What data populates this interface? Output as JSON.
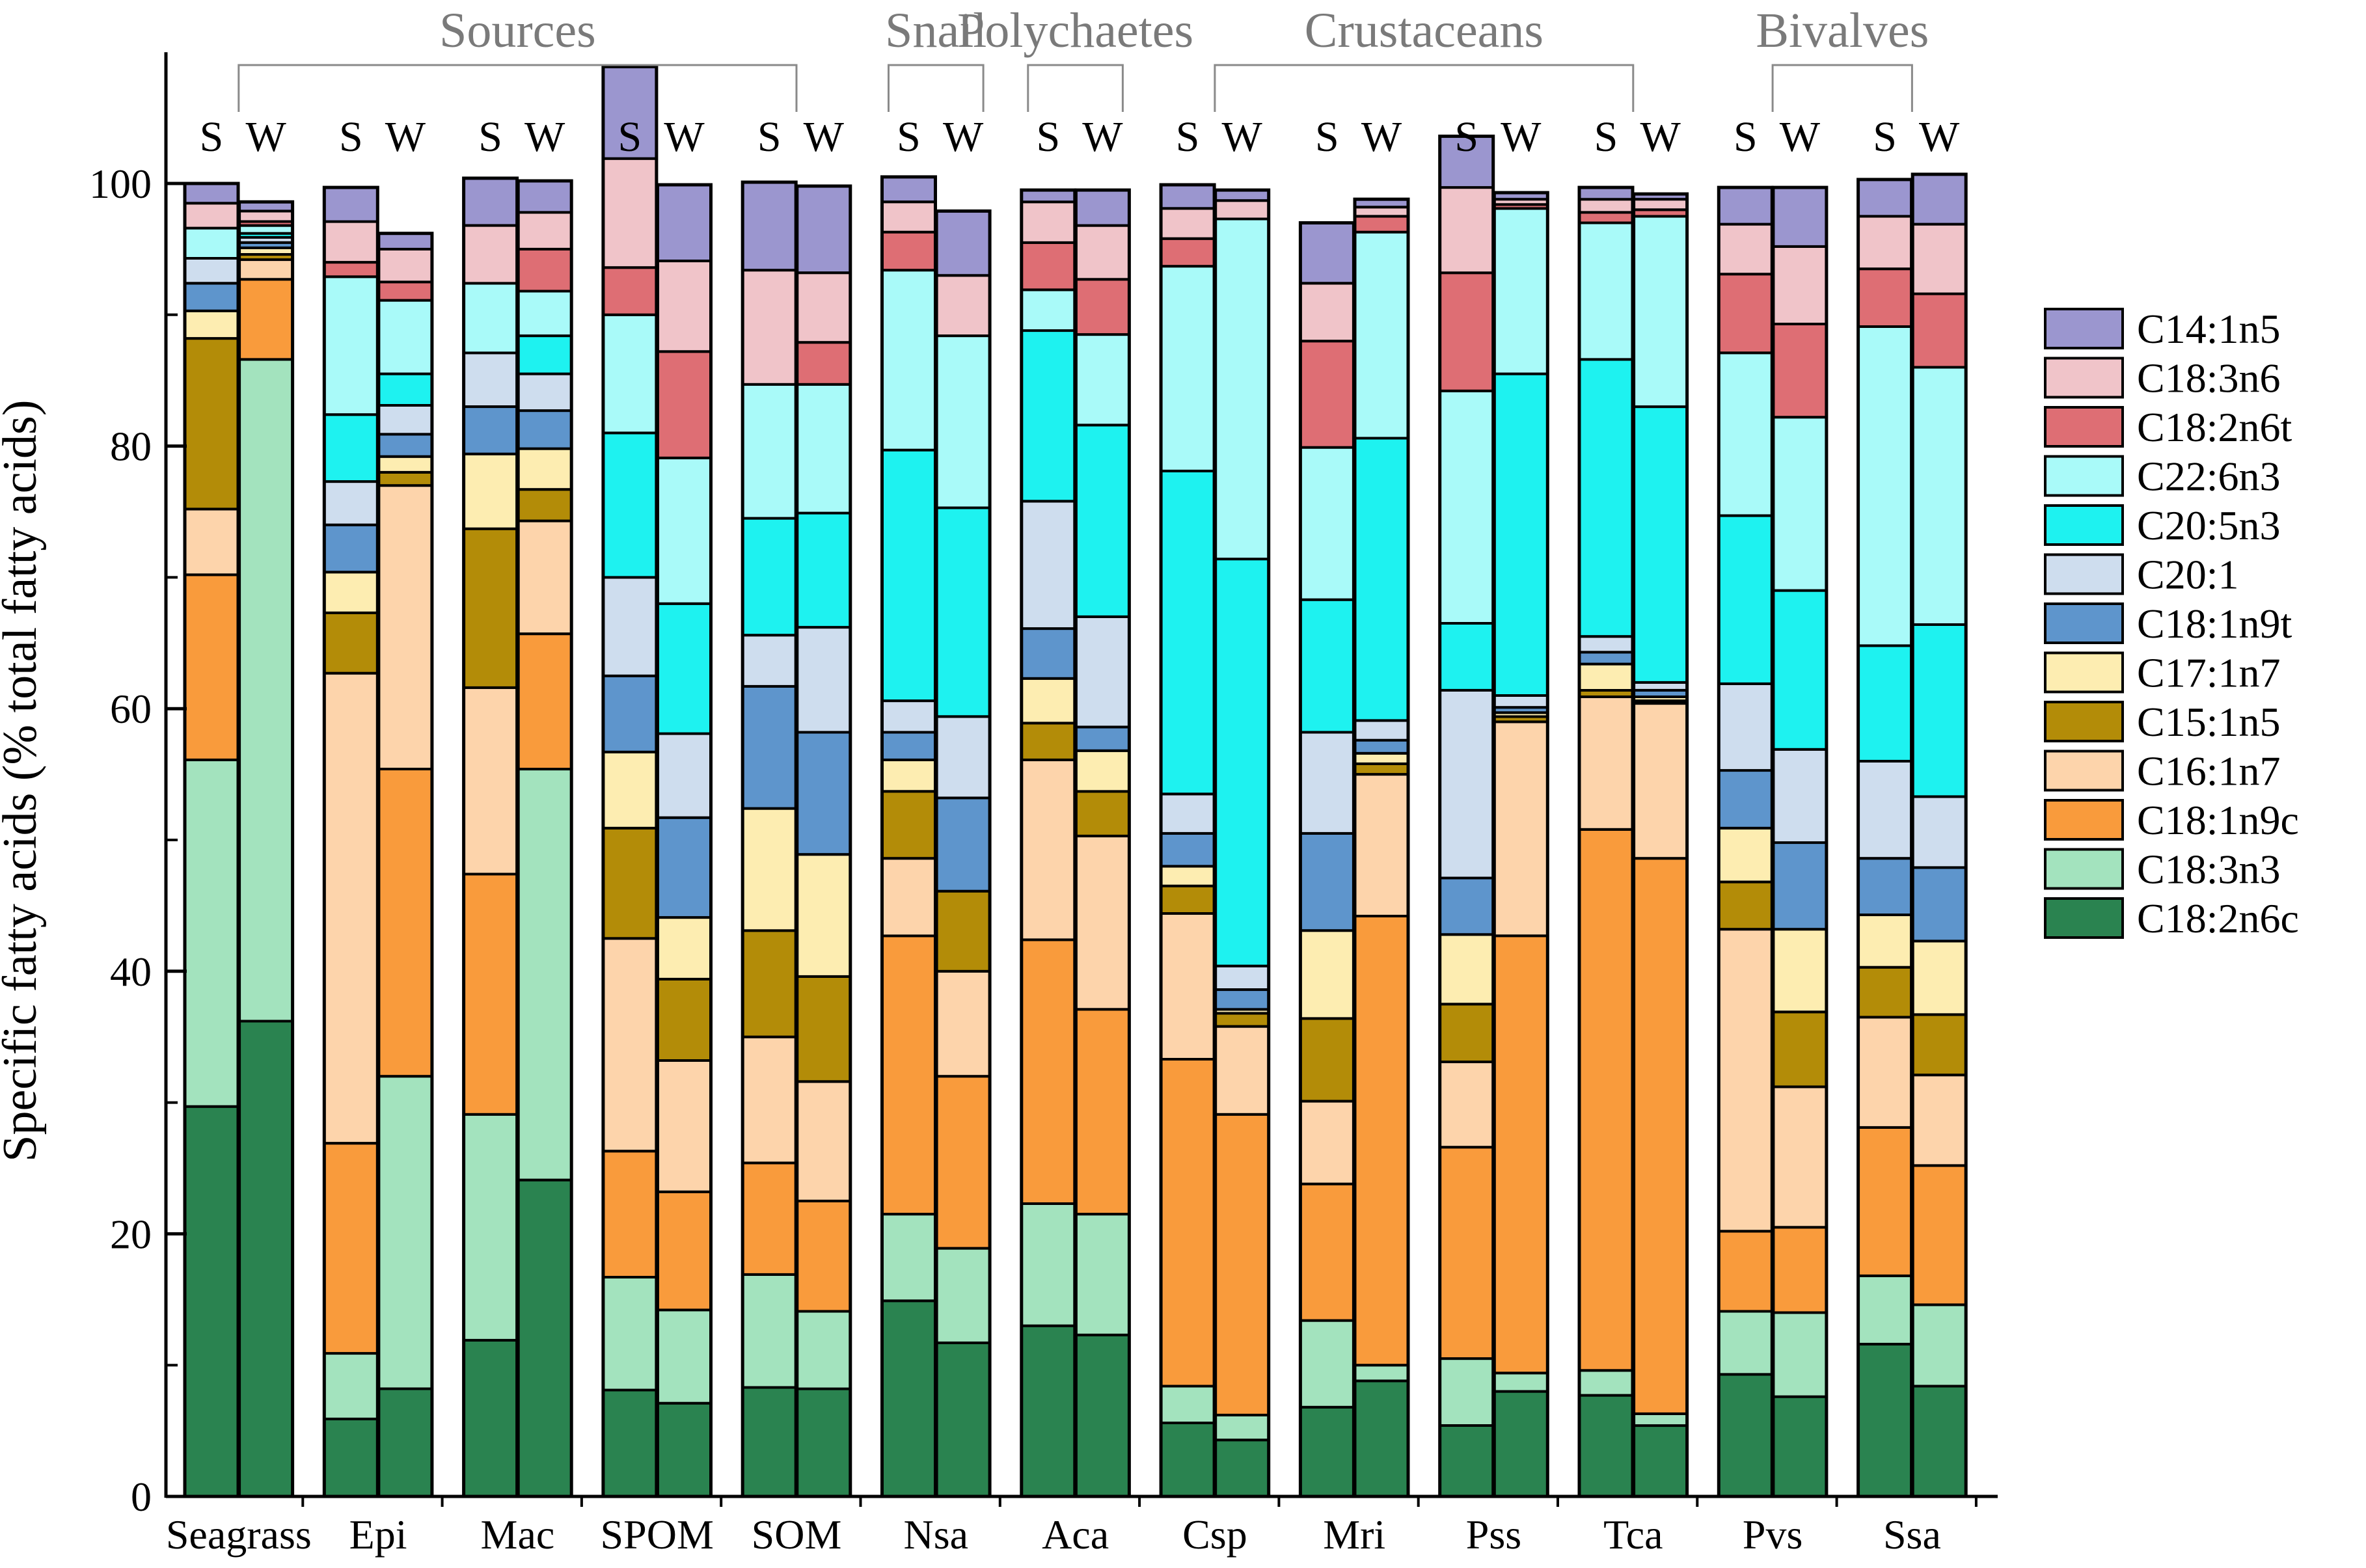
{
  "chart_data": {
    "type": "bar",
    "stacked": true,
    "ylabel": "Specific fatty acids (% total fatty acids)",
    "ylim": [
      0,
      110
    ],
    "yticks": [
      0,
      20,
      40,
      60,
      80,
      100
    ],
    "season_labels": [
      "S",
      "W"
    ],
    "groups": [
      {
        "label": "Sources",
        "first": "Seagrass",
        "last": "SOM"
      },
      {
        "label": "Snail",
        "first": "Nsa",
        "last": "Nsa"
      },
      {
        "label": "Polychaetes",
        "first": "Aca",
        "last": "Aca"
      },
      {
        "label": "Crustaceans",
        "first": "Csp",
        "last": "Tca"
      },
      {
        "label": "Bivalves",
        "first": "Pvs",
        "last": "Ssa"
      }
    ],
    "categories": [
      "Seagrass",
      "Epi",
      "Mac",
      "SPOM",
      "SOM",
      "Nsa",
      "Aca",
      "Csp",
      "Mri",
      "Pss",
      "Tca",
      "Pvs",
      "Ssa"
    ],
    "legend": [
      {
        "name": "C14:1n5",
        "color": "#9B96CF"
      },
      {
        "name": "C18:3n6",
        "color": "#F0C4C9"
      },
      {
        "name": "C18:2n6t",
        "color": "#DE6E74"
      },
      {
        "name": "C22:6n3",
        "color": "#A9FAF9"
      },
      {
        "name": "C20:5n3",
        "color": "#1EF2F0"
      },
      {
        "name": "C20:1",
        "color": "#CEDDEE"
      },
      {
        "name": "C18:1n9t",
        "color": "#5E95CC"
      },
      {
        "name": "C17:1n7",
        "color": "#FDEDB1"
      },
      {
        "name": "C15:1n5",
        "color": "#B38C08"
      },
      {
        "name": "C16:1n7",
        "color": "#FDD4AB"
      },
      {
        "name": "C18:1n9c",
        "color": "#F99B3C"
      },
      {
        "name": "C18:3n3",
        "color": "#A3E3BE"
      },
      {
        "name": "C18:2n6c",
        "color": "#2A8350"
      }
    ],
    "stack_order_bottom_to_top": [
      "C18:2n6c",
      "C18:3n3",
      "C18:1n9c",
      "C16:1n7",
      "C15:1n5",
      "C17:1n7",
      "C18:1n9t",
      "C20:1",
      "C20:5n3",
      "C22:6n3",
      "C18:2n6t",
      "C18:3n6",
      "C14:1n5"
    ],
    "series": [
      {
        "name": "C18:2n6c",
        "values": [
          [
            29.7,
            36.2
          ],
          [
            5.9,
            8.2
          ],
          [
            11.9,
            24.1
          ],
          [
            8.1,
            7.1
          ],
          [
            8.3,
            8.2
          ],
          [
            14.9,
            11.7
          ],
          [
            13.0,
            12.3
          ],
          [
            5.6,
            4.3
          ],
          [
            6.8,
            8.8
          ],
          [
            5.4,
            8.0
          ],
          [
            7.7,
            5.4
          ],
          [
            9.3,
            7.6
          ],
          [
            11.6,
            8.4
          ]
        ]
      },
      {
        "name": "C18:3n3",
        "values": [
          [
            26.4,
            50.4
          ],
          [
            5.0,
            23.8
          ],
          [
            17.2,
            31.3
          ],
          [
            8.6,
            7.1
          ],
          [
            8.6,
            5.9
          ],
          [
            6.6,
            7.2
          ],
          [
            9.3,
            9.2
          ],
          [
            2.8,
            1.9
          ],
          [
            6.6,
            1.2
          ],
          [
            5.1,
            1.4
          ],
          [
            1.9,
            0.9
          ],
          [
            4.8,
            6.4
          ],
          [
            5.2,
            6.2
          ]
        ]
      },
      {
        "name": "C18:1n9c",
        "values": [
          [
            14.1,
            6.1
          ],
          [
            16.0,
            23.4
          ],
          [
            18.3,
            10.3
          ],
          [
            9.6,
            9.0
          ],
          [
            8.5,
            8.4
          ],
          [
            21.2,
            13.1
          ],
          [
            20.1,
            15.6
          ],
          [
            24.9,
            22.9
          ],
          [
            10.4,
            34.2
          ],
          [
            16.1,
            33.3
          ],
          [
            41.2,
            42.3
          ],
          [
            6.1,
            6.5
          ],
          [
            11.3,
            10.6
          ]
        ]
      },
      {
        "name": "C16:1n7",
        "values": [
          [
            5.0,
            1.5
          ],
          [
            35.8,
            21.6
          ],
          [
            14.2,
            8.6
          ],
          [
            16.2,
            10.0
          ],
          [
            9.6,
            9.1
          ],
          [
            5.9,
            8.0
          ],
          [
            13.7,
            13.2
          ],
          [
            11.1,
            6.7
          ],
          [
            6.3,
            10.8
          ],
          [
            6.5,
            16.3
          ],
          [
            10.1,
            11.8
          ],
          [
            23.0,
            10.7
          ],
          [
            8.4,
            6.9
          ]
        ]
      },
      {
        "name": "C15:1n5",
        "values": [
          [
            13.0,
            0.4
          ],
          [
            4.6,
            1.0
          ],
          [
            12.1,
            2.4
          ],
          [
            8.4,
            6.2
          ],
          [
            8.1,
            8.0
          ],
          [
            5.1,
            6.1
          ],
          [
            2.8,
            3.4
          ],
          [
            2.1,
            1.0
          ],
          [
            6.3,
            0.8
          ],
          [
            4.4,
            0.4
          ],
          [
            0.5,
            0.2
          ],
          [
            3.6,
            5.7
          ],
          [
            3.8,
            4.6
          ]
        ]
      },
      {
        "name": "C17:1n7",
        "values": [
          [
            2.1,
            0.5
          ],
          [
            3.1,
            1.2
          ],
          [
            5.7,
            3.1
          ],
          [
            5.8,
            4.7
          ],
          [
            9.3,
            9.3
          ],
          [
            2.4,
            0.0
          ],
          [
            3.4,
            3.1
          ],
          [
            1.5,
            0.3
          ],
          [
            6.7,
            0.8
          ],
          [
            5.3,
            0.3
          ],
          [
            2.0,
            0.3
          ],
          [
            4.1,
            6.3
          ],
          [
            4.0,
            5.6
          ]
        ]
      },
      {
        "name": "C18:1n9t",
        "values": [
          [
            2.1,
            0.4
          ],
          [
            3.6,
            1.7
          ],
          [
            3.6,
            2.9
          ],
          [
            5.8,
            7.6
          ],
          [
            9.3,
            9.3
          ],
          [
            2.1,
            7.1
          ],
          [
            3.8,
            1.8
          ],
          [
            2.5,
            1.5
          ],
          [
            7.4,
            1.0
          ],
          [
            4.3,
            0.4
          ],
          [
            0.9,
            0.5
          ],
          [
            4.4,
            6.6
          ],
          [
            4.3,
            5.6
          ]
        ]
      },
      {
        "name": "C20:1",
        "values": [
          [
            1.9,
            0.4
          ],
          [
            3.3,
            2.2
          ],
          [
            4.1,
            2.8
          ],
          [
            7.5,
            6.4
          ],
          [
            3.9,
            8.0
          ],
          [
            2.4,
            6.2
          ],
          [
            9.7,
            8.4
          ],
          [
            3.0,
            1.8
          ],
          [
            7.7,
            1.5
          ],
          [
            14.3,
            0.9
          ],
          [
            1.2,
            0.6
          ],
          [
            6.6,
            7.1
          ],
          [
            7.4,
            5.4
          ]
        ]
      },
      {
        "name": "C20:5n3",
        "values": [
          [
            0.0,
            0.3
          ],
          [
            5.1,
            2.4
          ],
          [
            0.0,
            2.9
          ],
          [
            11.0,
            9.9
          ],
          [
            8.9,
            8.7
          ],
          [
            19.1,
            15.9
          ],
          [
            13.0,
            14.6
          ],
          [
            24.6,
            31.0
          ],
          [
            10.1,
            21.5
          ],
          [
            5.1,
            24.5
          ],
          [
            21.1,
            21.0
          ],
          [
            12.8,
            12.1
          ],
          [
            8.8,
            13.1
          ]
        ]
      },
      {
        "name": "C22:6n3",
        "values": [
          [
            2.3,
            0.6
          ],
          [
            10.5,
            5.6
          ],
          [
            5.3,
            3.4
          ],
          [
            9.0,
            11.1
          ],
          [
            10.2,
            9.8
          ],
          [
            13.7,
            13.1
          ],
          [
            3.1,
            6.9
          ],
          [
            15.6,
            25.9
          ],
          [
            11.6,
            15.7
          ],
          [
            17.7,
            12.6
          ],
          [
            10.4,
            14.5
          ],
          [
            12.4,
            13.2
          ],
          [
            24.3,
            19.6
          ]
        ]
      },
      {
        "name": "C18:2n6t",
        "values": [
          [
            0.0,
            0.3
          ],
          [
            1.1,
            1.4
          ],
          [
            0.0,
            3.2
          ],
          [
            3.6,
            8.1
          ],
          [
            0.0,
            3.2
          ],
          [
            2.9,
            0.0
          ],
          [
            3.6,
            4.2
          ],
          [
            2.1,
            0.0
          ],
          [
            8.1,
            1.2
          ],
          [
            9.0,
            0.3
          ],
          [
            0.8,
            0.5
          ],
          [
            6.0,
            7.1
          ],
          [
            4.4,
            5.6
          ]
        ]
      },
      {
        "name": "C18:3n6",
        "values": [
          [
            1.9,
            0.8
          ],
          [
            3.1,
            2.5
          ],
          [
            4.4,
            2.8
          ],
          [
            8.3,
            6.9
          ],
          [
            8.7,
            5.3
          ],
          [
            2.3,
            4.6
          ],
          [
            3.1,
            4.1
          ],
          [
            2.3,
            1.4
          ],
          [
            4.4,
            0.7
          ],
          [
            6.5,
            0.4
          ],
          [
            1.0,
            0.8
          ],
          [
            3.8,
            5.9
          ],
          [
            4.0,
            5.3
          ]
        ]
      },
      {
        "name": "C14:1n5",
        "values": [
          [
            1.5,
            0.7
          ],
          [
            2.6,
            1.2
          ],
          [
            3.6,
            2.4
          ],
          [
            7.0,
            5.8
          ],
          [
            6.7,
            6.6
          ],
          [
            1.9,
            4.9
          ],
          [
            0.9,
            2.7
          ],
          [
            1.8,
            0.8
          ],
          [
            4.6,
            0.6
          ],
          [
            3.9,
            0.5
          ],
          [
            0.9,
            0.4
          ],
          [
            2.8,
            4.5
          ],
          [
            2.8,
            3.8
          ]
        ]
      }
    ]
  }
}
